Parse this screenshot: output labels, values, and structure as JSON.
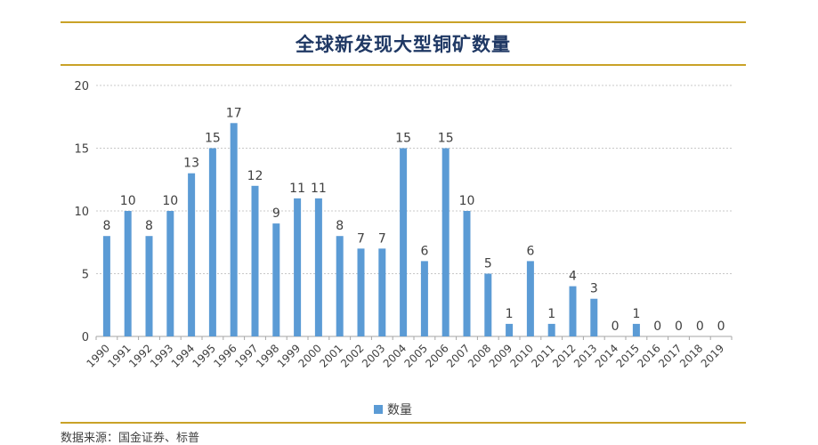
{
  "header": {
    "title": "全球新发现大型铜矿数量"
  },
  "footer": {
    "source": "数据来源：国金证券、标普"
  },
  "chart_data": {
    "type": "bar",
    "title": "全球新发现大型铜矿数量",
    "xlabel": "",
    "ylabel": "",
    "categories": [
      "1990",
      "1991",
      "1992",
      "1993",
      "1994",
      "1995",
      "1996",
      "1997",
      "1998",
      "1999",
      "2000",
      "2001",
      "2002",
      "2003",
      "2004",
      "2005",
      "2006",
      "2007",
      "2008",
      "2009",
      "2010",
      "2011",
      "2012",
      "2013",
      "2014",
      "2015",
      "2016",
      "2017",
      "2018",
      "2019"
    ],
    "series": [
      {
        "name": "数量",
        "values": [
          8,
          10,
          8,
          10,
          13,
          15,
          17,
          12,
          9,
          11,
          11,
          8,
          7,
          7,
          15,
          6,
          15,
          10,
          5,
          1,
          6,
          1,
          4,
          3,
          0,
          1,
          0,
          0,
          0,
          0
        ]
      }
    ],
    "ylim": [
      0,
      20
    ],
    "yticks": [
      "0",
      "5",
      "10",
      "15",
      "20"
    ],
    "grid": true,
    "legend_position": "bottom",
    "bar_color": "#5b9bd5",
    "data_labels": true
  }
}
